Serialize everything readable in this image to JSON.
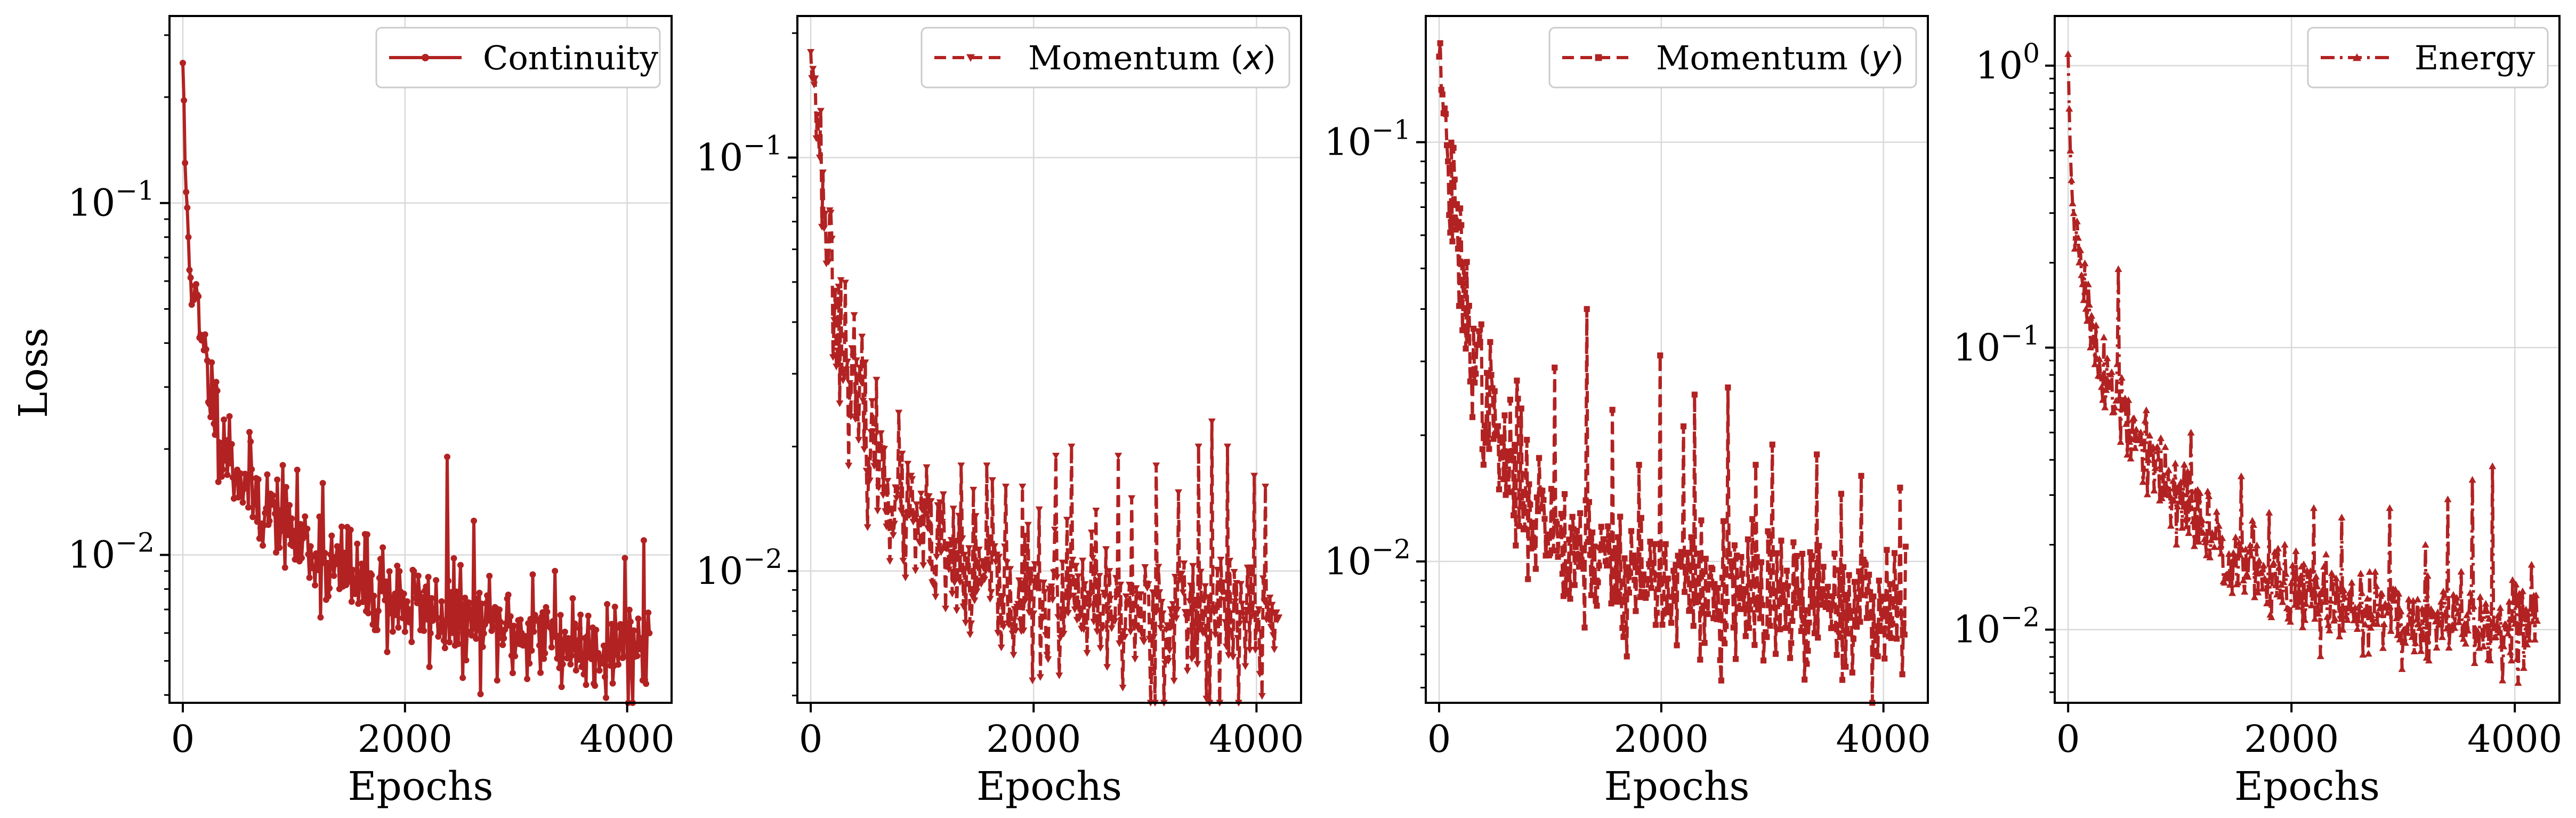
{
  "chart_data": [
    {
      "type": "line",
      "yscale": "log",
      "xlabel": "Epochs",
      "ylabel": "Loss",
      "xlim": [
        -120,
        4400
      ],
      "ylim": [
        0.0038,
        0.34
      ],
      "xticks": [
        0,
        2000,
        4000
      ],
      "yticks": [
        {
          "value": 0.01,
          "base": "10",
          "exp": "−2"
        },
        {
          "value": 0.1,
          "base": "10",
          "exp": "−1"
        }
      ],
      "grid": true,
      "legend_position": "top-right",
      "series": [
        {
          "name": "Continuity",
          "color": "#b22222",
          "linestyle": "solid",
          "marker": "circle",
          "anchors": [
            [
              0,
              0.25
            ],
            [
              20,
              0.13
            ],
            [
              50,
              0.08
            ],
            [
              100,
              0.055
            ],
            [
              150,
              0.042
            ],
            [
              250,
              0.03
            ],
            [
              350,
              0.022
            ],
            [
              500,
              0.017
            ],
            [
              700,
              0.014
            ],
            [
              1000,
              0.0115
            ],
            [
              1300,
              0.0095
            ],
            [
              1600,
              0.0082
            ],
            [
              2000,
              0.0072
            ],
            [
              2500,
              0.0065
            ],
            [
              3000,
              0.006
            ],
            [
              3500,
              0.0056
            ],
            [
              4200,
              0.0054
            ]
          ],
          "noise": 0.16,
          "seed": 11,
          "spikes": [
            [
              2380,
              0.019
            ],
            [
              1260,
              0.016
            ],
            [
              2620,
              0.0125
            ],
            [
              4150,
              0.011
            ],
            [
              3350,
              0.009
            ],
            [
              860,
              0.013
            ],
            [
              1480,
              0.012
            ],
            [
              3980,
              0.0098
            ],
            [
              300,
              0.031
            ],
            [
              560,
              0.017
            ],
            [
              1800,
              0.0105
            ],
            [
              3150,
              0.0088
            ]
          ]
        }
      ]
    },
    {
      "type": "line",
      "yscale": "log",
      "xlabel": "Epochs",
      "ylabel": "",
      "xlim": [
        -120,
        4400
      ],
      "ylim": [
        0.0048,
        0.22
      ],
      "xticks": [
        0,
        2000,
        4000
      ],
      "yticks": [
        {
          "value": 0.01,
          "base": "10",
          "exp": "−2"
        },
        {
          "value": 0.1,
          "base": "10",
          "exp": "−1"
        }
      ],
      "grid": true,
      "legend_position": "top-right",
      "series": [
        {
          "name": "Momentum (x)",
          "color": "#b22222",
          "linestyle": "dashed",
          "marker": "triangle-down",
          "anchors": [
            [
              0,
              0.18
            ],
            [
              30,
              0.15
            ],
            [
              80,
              0.1
            ],
            [
              150,
              0.065
            ],
            [
              250,
              0.04
            ],
            [
              400,
              0.026
            ],
            [
              600,
              0.018
            ],
            [
              900,
              0.013
            ],
            [
              1200,
              0.0105
            ],
            [
              1600,
              0.009
            ],
            [
              2000,
              0.0085
            ],
            [
              2500,
              0.008
            ],
            [
              3000,
              0.0078
            ],
            [
              3500,
              0.0077
            ],
            [
              4200,
              0.0075
            ]
          ],
          "noise": 0.2,
          "seed": 23,
          "spikes": [
            [
              3600,
              0.023
            ],
            [
              3480,
              0.02
            ],
            [
              2340,
              0.02
            ],
            [
              2200,
              0.019
            ],
            [
              2760,
              0.019
            ],
            [
              3100,
              0.018
            ],
            [
              3980,
              0.017
            ],
            [
              4080,
              0.016
            ],
            [
              3740,
              0.02
            ],
            [
              1350,
              0.018
            ],
            [
              1580,
              0.018
            ],
            [
              1900,
              0.016
            ],
            [
              2560,
              0.014
            ],
            [
              2880,
              0.015
            ],
            [
              620,
              0.02
            ],
            [
              900,
              0.017
            ],
            [
              1750,
              0.016
            ],
            [
              3300,
              0.0155
            ]
          ]
        }
      ]
    },
    {
      "type": "line",
      "yscale": "log",
      "xlabel": "Epochs",
      "ylabel": "",
      "xlim": [
        -120,
        4400
      ],
      "ylim": [
        0.0046,
        0.2
      ],
      "xticks": [
        0,
        2000,
        4000
      ],
      "yticks": [
        {
          "value": 0.01,
          "base": "10",
          "exp": "−2"
        },
        {
          "value": 0.1,
          "base": "10",
          "exp": "−1"
        }
      ],
      "grid": true,
      "legend_position": "top-right",
      "series": [
        {
          "name": "Momentum (y)",
          "color": "#b22222",
          "linestyle": "dashed",
          "marker": "square",
          "anchors": [
            [
              0,
              0.16
            ],
            [
              30,
              0.13
            ],
            [
              80,
              0.09
            ],
            [
              150,
              0.06
            ],
            [
              250,
              0.038
            ],
            [
              400,
              0.025
            ],
            [
              600,
              0.017
            ],
            [
              900,
              0.013
            ],
            [
              1200,
              0.011
            ],
            [
              1600,
              0.0095
            ],
            [
              2000,
              0.0088
            ],
            [
              2500,
              0.0082
            ],
            [
              3000,
              0.0079
            ],
            [
              3500,
              0.0077
            ],
            [
              4200,
              0.0076
            ]
          ],
          "noise": 0.19,
          "seed": 37,
          "spikes": [
            [
              1330,
              0.04
            ],
            [
              1990,
              0.031
            ],
            [
              1040,
              0.029
            ],
            [
              2600,
              0.026
            ],
            [
              2300,
              0.025
            ],
            [
              700,
              0.027
            ],
            [
              1560,
              0.023
            ],
            [
              2200,
              0.021
            ],
            [
              3000,
              0.019
            ],
            [
              3400,
              0.018
            ],
            [
              3800,
              0.016
            ],
            [
              4150,
              0.015
            ],
            [
              2850,
              0.017
            ],
            [
              1800,
              0.017
            ],
            [
              3620,
              0.0145
            ]
          ]
        }
      ]
    },
    {
      "type": "line",
      "yscale": "log",
      "xlabel": "Epochs",
      "ylabel": "",
      "xlim": [
        -120,
        4400
      ],
      "ylim": [
        0.0055,
        1.5
      ],
      "xticks": [
        0,
        2000,
        4000
      ],
      "yticks": [
        {
          "value": 0.01,
          "base": "10",
          "exp": "−2"
        },
        {
          "value": 0.1,
          "base": "10",
          "exp": "−1"
        },
        {
          "value": 1,
          "base": "10",
          "exp": "0"
        }
      ],
      "grid": true,
      "legend_position": "top-right",
      "series": [
        {
          "name": "Energy",
          "color": "#b22222",
          "linestyle": "dashdot",
          "marker": "triangle-up",
          "anchors": [
            [
              0,
              1.1
            ],
            [
              20,
              0.5
            ],
            [
              50,
              0.3
            ],
            [
              100,
              0.2
            ],
            [
              200,
              0.12
            ],
            [
              350,
              0.075
            ],
            [
              500,
              0.055
            ],
            [
              700,
              0.04
            ],
            [
              1000,
              0.028
            ],
            [
              1300,
              0.021
            ],
            [
              1600,
              0.017
            ],
            [
              2000,
              0.0135
            ],
            [
              2500,
              0.012
            ],
            [
              3000,
              0.011
            ],
            [
              3500,
              0.0105
            ],
            [
              4200,
              0.01
            ]
          ],
          "noise": 0.18,
          "seed": 51,
          "spikes": [
            [
              3800,
              0.038
            ],
            [
              3620,
              0.034
            ],
            [
              3400,
              0.029
            ],
            [
              2880,
              0.027
            ],
            [
              450,
              0.19
            ],
            [
              250,
              0.12
            ],
            [
              1100,
              0.05
            ],
            [
              1550,
              0.035
            ],
            [
              2200,
              0.027
            ],
            [
              2450,
              0.025
            ],
            [
              3200,
              0.02
            ],
            [
              4150,
              0.017
            ],
            [
              3980,
              0.015
            ],
            [
              1800,
              0.026
            ],
            [
              700,
              0.06
            ]
          ]
        }
      ]
    }
  ]
}
